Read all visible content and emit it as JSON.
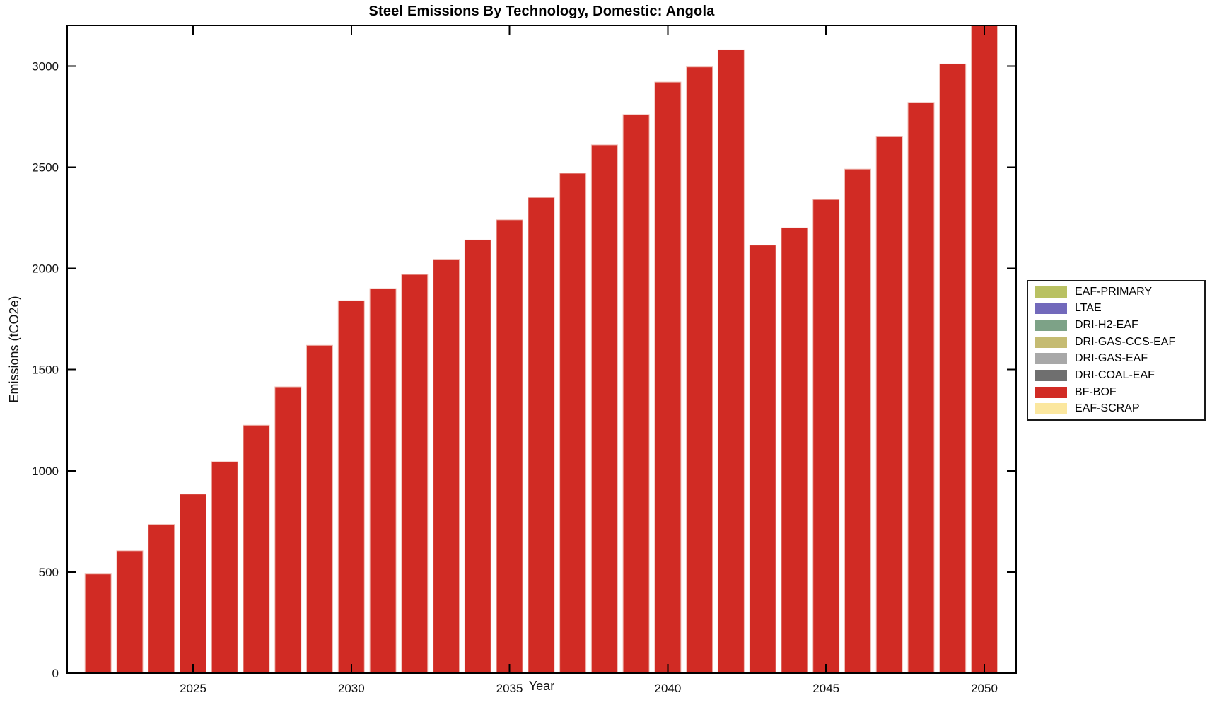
{
  "chart_data": {
    "type": "bar",
    "title": "Steel Emissions By Technology, Domestic: Angola",
    "xlabel": "Year",
    "ylabel": "Emissions (tCO2e)",
    "x": [
      2022,
      2023,
      2024,
      2025,
      2026,
      2027,
      2028,
      2029,
      2030,
      2031,
      2032,
      2033,
      2034,
      2035,
      2036,
      2037,
      2038,
      2039,
      2040,
      2041,
      2042,
      2043,
      2044,
      2045,
      2046,
      2047,
      2048,
      2049,
      2050
    ],
    "series": [
      {
        "name": "BF-BOF",
        "color": "#d12b24",
        "values": [
          490,
          605,
          735,
          885,
          1045,
          1225,
          1415,
          1620,
          1840,
          1900,
          1970,
          2045,
          2140,
          2240,
          2350,
          2470,
          2610,
          2760,
          2920,
          2995,
          3080,
          2115,
          2200,
          2340,
          2490,
          2650,
          2820,
          3010,
          3240
        ]
      }
    ],
    "ylim": [
      0,
      3200
    ],
    "yticks": [
      0,
      500,
      1000,
      1500,
      2000,
      2500,
      3000
    ],
    "xticks": [
      2025,
      2030,
      2035,
      2040,
      2045,
      2050
    ],
    "grid": false,
    "legend": {
      "position": "right-outside",
      "entries": [
        {
          "label": "EAF-PRIMARY",
          "color": "#b9c162"
        },
        {
          "label": "LTAE",
          "color": "#7269bb"
        },
        {
          "label": "DRI-H2-EAF",
          "color": "#7da287"
        },
        {
          "label": "DRI-GAS-CCS-EAF",
          "color": "#c5bb72"
        },
        {
          "label": "DRI-GAS-EAF",
          "color": "#a8a8a8"
        },
        {
          "label": "DRI-COAL-EAF",
          "color": "#6f6f6f"
        },
        {
          "label": "BF-BOF",
          "color": "#d12b24"
        },
        {
          "label": "EAF-SCRAP",
          "color": "#fbe79f"
        }
      ]
    }
  }
}
